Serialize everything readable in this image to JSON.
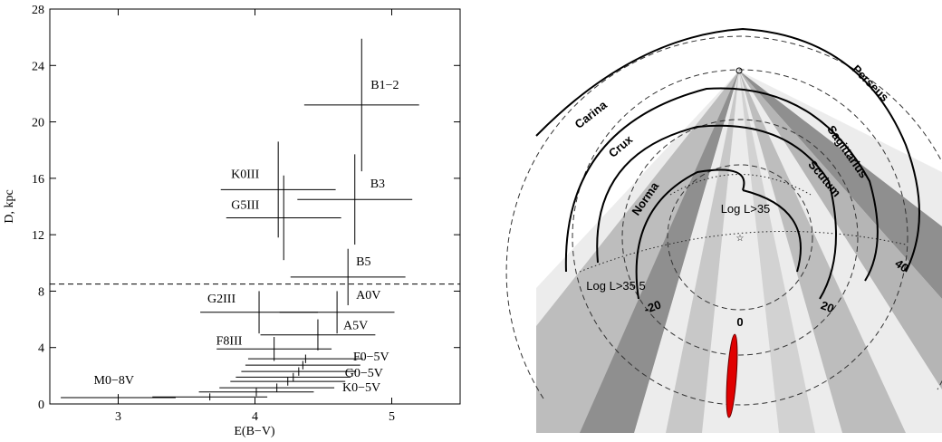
{
  "chart_data": {
    "type": "errorbar",
    "xlabel": "E(B−V)",
    "ylabel": "D, kpc",
    "x": [
      4.78,
      4.73,
      4.17,
      4.21,
      4.68,
      4.03,
      4.6,
      4.46,
      4.14,
      4.37,
      4.35,
      4.32,
      4.28,
      4.24,
      4.16,
      4.01,
      3.67,
      3.0
    ],
    "values": [
      21.2,
      14.5,
      15.2,
      13.2,
      9.0,
      6.5,
      6.5,
      4.9,
      3.9,
      3.2,
      2.75,
      2.3,
      1.9,
      1.6,
      1.15,
      0.85,
      0.5,
      0.45
    ],
    "xerr": [
      0.42,
      0.42,
      0.42,
      0.42,
      0.42,
      0.43,
      0.42,
      0.42,
      0.42,
      0.42,
      0.42,
      0.42,
      0.42,
      0.42,
      0.42,
      0.42,
      0.42,
      0.42
    ],
    "yerr": [
      4.7,
      3.2,
      3.4,
      3.0,
      2.0,
      1.5,
      1.5,
      1.1,
      0.85,
      0.3,
      0.3,
      0.3,
      0.3,
      0.3,
      0.3,
      0.3,
      0.25,
      0.25
    ],
    "labels": [
      "B1−2",
      "B3",
      "K0III",
      "G5III",
      "B5",
      "G2III",
      "A0V",
      "A5V",
      "F8III",
      null,
      null,
      "F0−5V",
      null,
      "G0−5V",
      null,
      "K0−5V",
      null,
      "M0−8V"
    ],
    "reference_line": 8.5,
    "xlim": [
      2.5,
      5.5
    ],
    "xticks": [
      3,
      4,
      5
    ],
    "ylim": [
      0,
      28
    ],
    "yticks": [
      0,
      4,
      8,
      12,
      16,
      20,
      24,
      28
    ]
  },
  "map": {
    "arms": [
      "Perseus",
      "Carina",
      "Sagittarius",
      "Crux",
      "Scutum",
      "Norma"
    ],
    "limits": [
      "Log L>35",
      "Log L>35.5"
    ],
    "scale": [
      "-20",
      "0",
      "20",
      "40"
    ]
  }
}
